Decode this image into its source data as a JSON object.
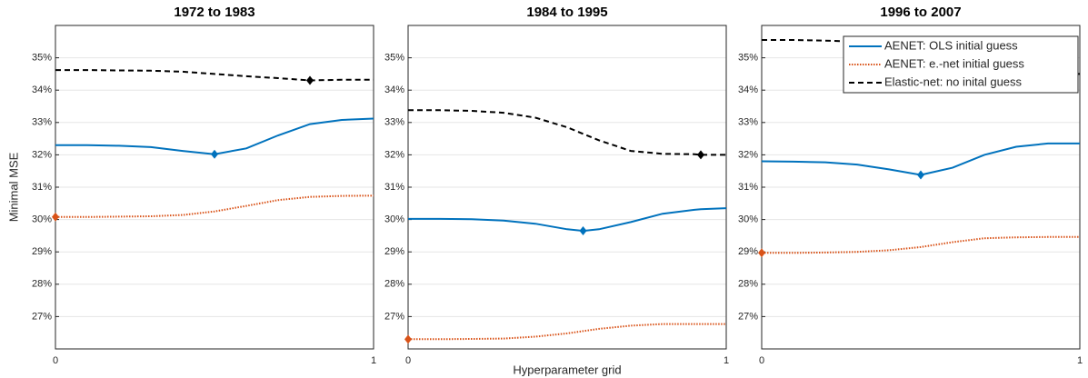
{
  "chart_data": [
    {
      "type": "line",
      "title": "1972 to 1983",
      "ylabel": "Minimal MSE",
      "xlim": [
        0,
        1
      ],
      "xticks": [
        0,
        1
      ],
      "ylim": [
        26,
        36
      ],
      "yticks": [
        {
          "value": 27,
          "label": "27%"
        },
        {
          "value": 28,
          "label": "28%"
        },
        {
          "value": 29,
          "label": "29%"
        },
        {
          "value": 30,
          "label": "30%"
        },
        {
          "value": 31,
          "label": "31%"
        },
        {
          "value": 32,
          "label": "32%"
        },
        {
          "value": 33,
          "label": "33%"
        },
        {
          "value": 34,
          "label": "34%"
        },
        {
          "value": 35,
          "label": "35%"
        }
      ],
      "grid": true,
      "series": [
        {
          "color": "#0072bd",
          "style": "solid",
          "marker": 5,
          "x": [
            0,
            0.1,
            0.2,
            0.3,
            0.4,
            0.5,
            0.6,
            0.7,
            0.8,
            0.9,
            1
          ],
          "values": [
            32.3,
            32.3,
            32.28,
            32.24,
            32.12,
            32.02,
            32.2,
            32.6,
            32.95,
            33.08,
            33.12
          ]
        },
        {
          "color": "#d95319",
          "style": "dotted",
          "marker": 0,
          "x": [
            0,
            0.1,
            0.2,
            0.3,
            0.4,
            0.5,
            0.6,
            0.7,
            0.8,
            0.9,
            1
          ],
          "values": [
            30.08,
            30.08,
            30.09,
            30.1,
            30.14,
            30.25,
            30.42,
            30.6,
            30.7,
            30.73,
            30.74
          ]
        },
        {
          "color": "#000000",
          "style": "dashed",
          "marker": 8,
          "x": [
            0,
            0.1,
            0.2,
            0.3,
            0.4,
            0.5,
            0.6,
            0.7,
            0.8,
            0.9,
            1
          ],
          "values": [
            34.62,
            34.62,
            34.61,
            34.6,
            34.57,
            34.5,
            34.43,
            34.37,
            34.3,
            34.32,
            34.32
          ]
        }
      ]
    },
    {
      "type": "line",
      "title": "1984 to 1995",
      "xlabel": "Hyperparameter grid",
      "xlim": [
        0,
        1
      ],
      "xticks": [
        0,
        1
      ],
      "ylim": [
        26,
        36
      ],
      "yticks": [
        {
          "value": 27,
          "label": "27%"
        },
        {
          "value": 28,
          "label": "28%"
        },
        {
          "value": 29,
          "label": "29%"
        },
        {
          "value": 30,
          "label": "30%"
        },
        {
          "value": 31,
          "label": "31%"
        },
        {
          "value": 32,
          "label": "32%"
        },
        {
          "value": 33,
          "label": "33%"
        },
        {
          "value": 34,
          "label": "34%"
        },
        {
          "value": 35,
          "label": "35%"
        }
      ],
      "grid": true,
      "series": [
        {
          "color": "#0072bd",
          "style": "solid",
          "marker": 6,
          "x": [
            0,
            0.1,
            0.2,
            0.3,
            0.4,
            0.5,
            0.55,
            0.6,
            0.7,
            0.8,
            0.9,
            0.92,
            1
          ],
          "values": [
            30.02,
            30.02,
            30.01,
            29.97,
            29.87,
            29.7,
            29.65,
            29.7,
            29.92,
            30.18,
            30.3,
            30.32,
            30.35
          ]
        },
        {
          "color": "#d95319",
          "style": "dotted",
          "marker": 0,
          "x": [
            0,
            0.1,
            0.2,
            0.3,
            0.4,
            0.5,
            0.55,
            0.6,
            0.7,
            0.8,
            0.9,
            0.92,
            1
          ],
          "values": [
            26.3,
            26.3,
            26.31,
            26.32,
            26.38,
            26.48,
            26.55,
            26.62,
            26.72,
            26.77,
            26.77,
            26.77,
            26.77
          ]
        },
        {
          "color": "#000000",
          "style": "dashed",
          "marker": 11,
          "x": [
            0,
            0.1,
            0.2,
            0.3,
            0.4,
            0.5,
            0.55,
            0.6,
            0.7,
            0.8,
            0.9,
            0.92,
            1
          ],
          "values": [
            33.38,
            33.38,
            33.36,
            33.3,
            33.15,
            32.85,
            32.65,
            32.45,
            32.12,
            32.03,
            32.02,
            32.0,
            32.0
          ]
        }
      ]
    },
    {
      "type": "line",
      "title": "1996 to 2007",
      "legend": "northeast",
      "xlim": [
        0,
        1
      ],
      "xticks": [
        0,
        1
      ],
      "ylim": [
        26,
        36
      ],
      "yticks": [
        {
          "value": 27,
          "label": "27%"
        },
        {
          "value": 28,
          "label": "28%"
        },
        {
          "value": 29,
          "label": "29%"
        },
        {
          "value": 30,
          "label": "30%"
        },
        {
          "value": 31,
          "label": "31%"
        },
        {
          "value": 32,
          "label": "32%"
        },
        {
          "value": 33,
          "label": "33%"
        },
        {
          "value": 34,
          "label": "34%"
        },
        {
          "value": 35,
          "label": "35%"
        }
      ],
      "grid": true,
      "series": [
        {
          "name": "AENET: OLS initial guess",
          "color": "#0072bd",
          "style": "solid",
          "marker": 5,
          "x": [
            0,
            0.1,
            0.2,
            0.3,
            0.4,
            0.5,
            0.6,
            0.7,
            0.8,
            0.9,
            1
          ],
          "values": [
            31.8,
            31.79,
            31.77,
            31.7,
            31.55,
            31.38,
            31.6,
            32.0,
            32.25,
            32.35,
            32.35
          ]
        },
        {
          "name": "AENET: e.-net initial guess",
          "color": "#d95319",
          "style": "dotted",
          "marker": 0,
          "x": [
            0,
            0.1,
            0.2,
            0.3,
            0.4,
            0.5,
            0.6,
            0.7,
            0.8,
            0.9,
            1
          ],
          "values": [
            28.97,
            28.97,
            28.98,
            29.0,
            29.05,
            29.15,
            29.3,
            29.42,
            29.45,
            29.46,
            29.46
          ]
        },
        {
          "name": "Elastic-net: no inital guess",
          "color": "#000000",
          "style": "dashed",
          "x": [
            0,
            0.1,
            0.2,
            0.3,
            0.4,
            0.5,
            0.6,
            0.7,
            0.8,
            0.9,
            1
          ],
          "values": [
            35.55,
            35.55,
            35.53,
            35.5,
            35.4,
            35.2,
            35.0,
            34.75,
            34.6,
            34.52,
            34.5
          ]
        }
      ]
    }
  ]
}
